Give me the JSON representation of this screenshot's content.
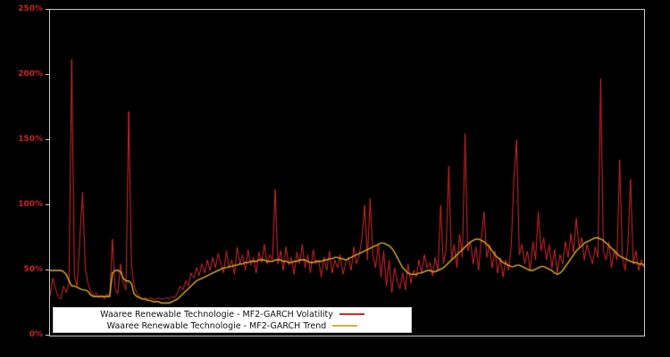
{
  "chart_data": {
    "type": "line",
    "title": "",
    "xlabel": "",
    "ylabel": "",
    "ylim": [
      0,
      250
    ],
    "ytick_labels": [
      "0%",
      "50%",
      "100%",
      "150%",
      "200%",
      "250%"
    ],
    "ytick_values": [
      0,
      50,
      100,
      150,
      200,
      250
    ],
    "grid": false,
    "legend_position": "lower left",
    "colors": {
      "volatility": "#d62b2b",
      "trend": "#ddb02a",
      "axis_label": "#cc2222",
      "frame": "#c8c8c8",
      "background": "#000000"
    },
    "series": [
      {
        "name": "Waaree Renewable Technologie - MF2-GARCH Volatility",
        "color_key": "volatility",
        "line_width": 1,
        "values": [
          30,
          44,
          36,
          30,
          28,
          38,
          33,
          40,
          212,
          45,
          38,
          75,
          110,
          52,
          40,
          34,
          30,
          33,
          29,
          31,
          28,
          32,
          30,
          74,
          36,
          32,
          55,
          40,
          35,
          172,
          55,
          38,
          33,
          30,
          28,
          29,
          28,
          29,
          28,
          28,
          29,
          28,
          28,
          29,
          28,
          30,
          29,
          33,
          38,
          35,
          42,
          38,
          48,
          44,
          52,
          46,
          55,
          48,
          58,
          50,
          60,
          52,
          63,
          55,
          48,
          65,
          52,
          58,
          47,
          68,
          55,
          62,
          50,
          66,
          54,
          60,
          48,
          64,
          56,
          70,
          55,
          62,
          58,
          112,
          55,
          65,
          50,
          68,
          54,
          60,
          47,
          64,
          55,
          70,
          52,
          62,
          48,
          66,
          55,
          58,
          45,
          60,
          50,
          65,
          48,
          58,
          52,
          62,
          47,
          56,
          60,
          50,
          68,
          55,
          62,
          75,
          100,
          58,
          105,
          62,
          52,
          70,
          45,
          65,
          38,
          58,
          33,
          52,
          42,
          36,
          48,
          35,
          55,
          40,
          50,
          45,
          58,
          48,
          62,
          52,
          56,
          46,
          60,
          50,
          100,
          55,
          65,
          130,
          58,
          70,
          52,
          78,
          60,
          155,
          65,
          72,
          55,
          68,
          50,
          75,
          95,
          60,
          70,
          52,
          65,
          48,
          60,
          45,
          58,
          50,
          68,
          120,
          150,
          62,
          70,
          55,
          65,
          50,
          72,
          58,
          95,
          65,
          75,
          58,
          70,
          52,
          66,
          48,
          62,
          55,
          72,
          60,
          78,
          64,
          90,
          68,
          75,
          58,
          70,
          62,
          55,
          68,
          60,
          197,
          65,
          58,
          72,
          52,
          66,
          58,
          135,
          60,
          50,
          68,
          120,
          55,
          65,
          50,
          58,
          52
        ]
      },
      {
        "name": "Waaree Renewable Technologie - MF2-GARCH Trend",
        "color_key": "trend",
        "line_width": 1.4,
        "values": [
          50,
          50,
          50,
          50,
          50,
          49,
          47,
          42,
          38,
          38,
          37,
          36,
          35,
          35,
          34,
          31,
          30,
          30,
          30,
          30,
          30,
          30,
          30,
          48,
          50,
          50,
          49,
          44,
          42,
          42,
          40,
          32,
          30,
          29,
          28,
          28,
          27,
          27,
          26,
          26,
          26,
          25,
          25,
          25,
          25,
          26,
          27,
          28,
          30,
          32,
          34,
          36,
          38,
          40,
          42,
          43,
          44,
          45,
          46,
          47,
          48,
          49,
          50,
          51,
          52,
          52,
          53,
          53,
          54,
          54,
          55,
          55,
          56,
          56,
          57,
          57,
          57,
          58,
          58,
          58,
          57,
          57,
          57,
          58,
          58,
          58,
          57,
          57,
          56,
          56,
          57,
          57,
          58,
          58,
          58,
          57,
          56,
          56,
          57,
          57,
          57,
          58,
          58,
          59,
          59,
          60,
          60,
          59,
          59,
          58,
          59,
          60,
          61,
          62,
          63,
          64,
          65,
          66,
          67,
          68,
          69,
          70,
          71,
          71,
          70,
          69,
          67,
          64,
          60,
          56,
          52,
          50,
          48,
          47,
          47,
          47,
          48,
          48,
          49,
          50,
          50,
          49,
          49,
          50,
          51,
          52,
          54,
          56,
          58,
          60,
          62,
          64,
          66,
          68,
          70,
          72,
          73,
          74,
          74,
          73,
          72,
          70,
          68,
          65,
          62,
          60,
          58,
          56,
          55,
          54,
          53,
          53,
          54,
          54,
          53,
          52,
          51,
          50,
          50,
          51,
          52,
          53,
          53,
          52,
          51,
          50,
          48,
          47,
          48,
          50,
          53,
          56,
          59,
          62,
          65,
          67,
          69,
          71,
          72,
          73,
          74,
          75,
          75,
          74,
          73,
          71,
          69,
          67,
          65,
          63,
          61,
          60,
          59,
          58,
          57,
          56,
          56,
          55,
          55,
          54
        ]
      }
    ]
  },
  "axes": {
    "y_axis_name": "volatility-percent"
  }
}
